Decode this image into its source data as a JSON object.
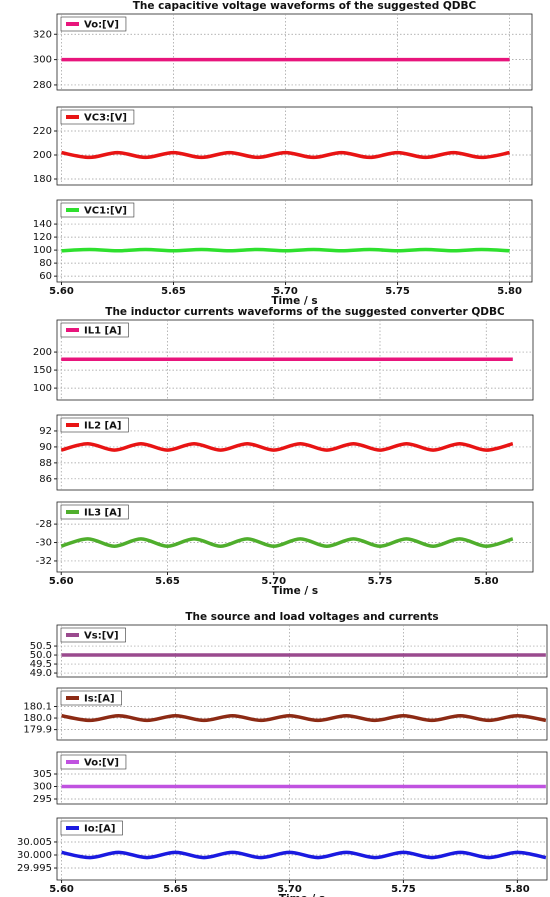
{
  "chart_data": [
    {
      "type": "line",
      "title": "The capacitive voltage waveforms of the suggested QDBC",
      "x": [
        5.6,
        5.6125,
        5.625,
        5.6375,
        5.65,
        5.6625,
        5.675,
        5.6875,
        5.7,
        5.7125,
        5.725,
        5.7375,
        5.75,
        5.7625,
        5.775,
        5.7875,
        5.8
      ],
      "series": [
        {
          "name": "Vo:[V]",
          "color": "#e8157c",
          "values": [
            300,
            300,
            300,
            300,
            300,
            300,
            300,
            300,
            300,
            300,
            300,
            300,
            300,
            300,
            300,
            300,
            300
          ]
        }
      ],
      "xlim": [
        5.598,
        5.81
      ],
      "xticks": [
        5.6,
        5.65,
        5.7,
        5.75,
        5.8
      ],
      "ylim": [
        276,
        336
      ],
      "yticks": [
        280,
        300,
        320
      ],
      "grid": true,
      "legend": "upper left"
    },
    {
      "type": "line",
      "x": [
        5.6,
        5.6125,
        5.625,
        5.6375,
        5.65,
        5.6625,
        5.675,
        5.6875,
        5.7,
        5.7125,
        5.725,
        5.7375,
        5.75,
        5.7625,
        5.775,
        5.7875,
        5.8
      ],
      "series": [
        {
          "name": "VC3:[V]",
          "color": "#e81414",
          "values": [
            202,
            198,
            202,
            198,
            202,
            198,
            202,
            198,
            202,
            198,
            202,
            198,
            202,
            198,
            202,
            198,
            202
          ]
        }
      ],
      "xlim": [
        5.598,
        5.81
      ],
      "xticks": [
        5.6,
        5.65,
        5.7,
        5.75,
        5.8
      ],
      "ylim": [
        175,
        240
      ],
      "yticks": [
        180,
        200,
        220
      ],
      "grid": true,
      "legend": "upper left"
    },
    {
      "type": "line",
      "x": [
        5.6,
        5.6125,
        5.625,
        5.6375,
        5.65,
        5.6625,
        5.675,
        5.6875,
        5.7,
        5.7125,
        5.725,
        5.7375,
        5.75,
        5.7625,
        5.775,
        5.7875,
        5.8
      ],
      "series": [
        {
          "name": "VC1:[V]",
          "color": "#2ee02e",
          "values": [
            99,
            101,
            99,
            101,
            99,
            101,
            99,
            101,
            99,
            101,
            99,
            101,
            99,
            101,
            99,
            101,
            99
          ]
        }
      ],
      "xlim": [
        5.598,
        5.81
      ],
      "xticks": [
        {
          "value": 5.6,
          "label": "5.60"
        },
        {
          "value": 5.65,
          "label": "5.65"
        },
        {
          "value": 5.7,
          "label": "5.70"
        },
        {
          "value": 5.75,
          "label": "5.75"
        },
        {
          "value": 5.8,
          "label": "5.80"
        }
      ],
      "ylim": [
        51,
        177
      ],
      "yticks": [
        60,
        80,
        100,
        120,
        140
      ],
      "grid": true,
      "legend": "upper left",
      "xlabel": "Time / s"
    },
    {
      "type": "line",
      "title": "The inductor currents waveforms of the suggested converter QDBC",
      "x": [
        5.6,
        5.6125,
        5.625,
        5.6375,
        5.65,
        5.6625,
        5.675,
        5.6875,
        5.7,
        5.7125,
        5.725,
        5.7375,
        5.75,
        5.7625,
        5.775,
        5.7875,
        5.8,
        5.8125
      ],
      "series": [
        {
          "name": "IL1 [A]",
          "color": "#e8157c",
          "values": [
            180,
            180,
            180,
            180,
            180,
            180,
            180,
            180,
            180,
            180,
            180,
            180,
            180,
            180,
            180,
            180,
            180,
            180
          ]
        }
      ],
      "xlim": [
        5.598,
        5.822
      ],
      "xticks": [
        5.6,
        5.65,
        5.7,
        5.75,
        5.8
      ],
      "ylim": [
        67,
        289
      ],
      "yticks": [
        100,
        150,
        200
      ],
      "grid": true,
      "legend": "upper left"
    },
    {
      "type": "line",
      "x": [
        5.6,
        5.6125,
        5.625,
        5.6375,
        5.65,
        5.6625,
        5.675,
        5.6875,
        5.7,
        5.7125,
        5.725,
        5.7375,
        5.75,
        5.7625,
        5.775,
        5.7875,
        5.8,
        5.8125
      ],
      "series": [
        {
          "name": "IL2 [A]",
          "color": "#e81414",
          "values": [
            89.6,
            90.4,
            89.6,
            90.4,
            89.6,
            90.4,
            89.6,
            90.4,
            89.6,
            90.4,
            89.6,
            90.4,
            89.6,
            90.4,
            89.6,
            90.4,
            89.6,
            90.4
          ]
        }
      ],
      "xlim": [
        5.598,
        5.822
      ],
      "xticks": [
        5.6,
        5.65,
        5.7,
        5.75,
        5.8
      ],
      "ylim": [
        84.6,
        94
      ],
      "yticks": [
        86,
        88,
        90,
        92
      ],
      "grid": true,
      "legend": "upper left"
    },
    {
      "type": "line",
      "x": [
        5.6,
        5.6125,
        5.625,
        5.6375,
        5.65,
        5.6625,
        5.675,
        5.6875,
        5.7,
        5.7125,
        5.725,
        5.7375,
        5.75,
        5.7625,
        5.775,
        5.7875,
        5.8,
        5.8125
      ],
      "series": [
        {
          "name": "IL3 [A]",
          "color": "#4fae2c",
          "values": [
            -30.4,
            -29.6,
            -30.4,
            -29.6,
            -30.4,
            -29.6,
            -30.4,
            -29.6,
            -30.4,
            -29.6,
            -30.4,
            -29.6,
            -30.4,
            -29.6,
            -30.4,
            -29.6,
            -30.4,
            -29.6
          ]
        }
      ],
      "xlim": [
        5.598,
        5.822
      ],
      "xticks": [
        {
          "value": 5.6,
          "label": "5.60"
        },
        {
          "value": 5.65,
          "label": "5.65"
        },
        {
          "value": 5.7,
          "label": "5.70"
        },
        {
          "value": 5.75,
          "label": "5.75"
        },
        {
          "value": 5.8,
          "label": "5.80"
        }
      ],
      "ylim": [
        -33.2,
        -25.6
      ],
      "yticks": [
        -32,
        -30,
        -28
      ],
      "grid": true,
      "legend": "upper left",
      "xlabel": "Time / s"
    },
    {
      "type": "line",
      "title": "The source and load voltages and currents",
      "x": [
        5.6,
        5.6125,
        5.625,
        5.6375,
        5.65,
        5.6625,
        5.675,
        5.6875,
        5.7,
        5.7125,
        5.725,
        5.7375,
        5.75,
        5.7625,
        5.775,
        5.7875,
        5.8,
        5.8125
      ],
      "series": [
        {
          "name": "Vs:[V]",
          "color": "#9a4a8e",
          "values": [
            50,
            50,
            50,
            50,
            50,
            50,
            50,
            50,
            50,
            50,
            50,
            50,
            50,
            50,
            50,
            50,
            50,
            50
          ]
        }
      ],
      "xlim": [
        5.598,
        5.813
      ],
      "xticks": [
        5.6,
        5.65,
        5.7,
        5.75,
        5.8
      ],
      "ylim": [
        48.78,
        51.67
      ],
      "yticks": [
        {
          "value": 49,
          "label": "49.0"
        },
        49.5,
        {
          "value": 50,
          "label": "50.0"
        },
        50.5
      ],
      "grid": true,
      "legend": "upper left"
    },
    {
      "type": "line",
      "x": [
        5.6,
        5.6125,
        5.625,
        5.6375,
        5.65,
        5.6625,
        5.675,
        5.6875,
        5.7,
        5.7125,
        5.725,
        5.7375,
        5.75,
        5.7625,
        5.775,
        5.7875,
        5.8,
        5.8125
      ],
      "series": [
        {
          "name": "Is:[A]",
          "color": "#8c2a14",
          "values": [
            180.02,
            179.98,
            180.02,
            179.98,
            180.02,
            179.98,
            180.02,
            179.98,
            180.02,
            179.98,
            180.02,
            179.98,
            180.02,
            179.98,
            180.02,
            179.98,
            180.02,
            179.98
          ]
        }
      ],
      "xlim": [
        5.598,
        5.813
      ],
      "xticks": [
        5.6,
        5.65,
        5.7,
        5.75,
        5.8
      ],
      "ylim": [
        179.81,
        180.26
      ],
      "yticks": [
        179.9,
        {
          "value": 180,
          "label": "180.0"
        },
        180.1
      ],
      "grid": true,
      "legend": "upper left"
    },
    {
      "type": "line",
      "x": [
        5.6,
        5.6125,
        5.625,
        5.6375,
        5.65,
        5.6625,
        5.675,
        5.6875,
        5.7,
        5.7125,
        5.725,
        5.7375,
        5.75,
        5.7625,
        5.775,
        5.7875,
        5.8,
        5.8125
      ],
      "series": [
        {
          "name": "Vo:[V]",
          "color": "#c052e0",
          "values": [
            300,
            300,
            300,
            300,
            300,
            300,
            300,
            300,
            300,
            300,
            300,
            300,
            300,
            300,
            300,
            300,
            300,
            300
          ]
        }
      ],
      "xlim": [
        5.598,
        5.813
      ],
      "xticks": [
        5.6,
        5.65,
        5.7,
        5.75,
        5.8
      ],
      "ylim": [
        293,
        313.8
      ],
      "yticks": [
        295,
        300,
        305
      ],
      "grid": true,
      "legend": "upper left"
    },
    {
      "type": "line",
      "x": [
        5.6,
        5.6125,
        5.625,
        5.6375,
        5.65,
        5.6625,
        5.675,
        5.6875,
        5.7,
        5.7125,
        5.725,
        5.7375,
        5.75,
        5.7625,
        5.775,
        5.7875,
        5.8,
        5.8125
      ],
      "series": [
        {
          "name": "Io:[A]",
          "color": "#1a1ae0",
          "values": [
            30.001,
            29.999,
            30.001,
            29.999,
            30.001,
            29.999,
            30.001,
            29.999,
            30.001,
            29.999,
            30.001,
            29.999,
            30.001,
            29.999,
            30.001,
            29.999,
            30.001,
            29.999
          ]
        }
      ],
      "xlim": [
        5.598,
        5.813
      ],
      "xticks": [
        {
          "value": 5.6,
          "label": "5.60"
        },
        {
          "value": 5.65,
          "label": "5.65"
        },
        {
          "value": 5.7,
          "label": "5.70"
        },
        {
          "value": 5.75,
          "label": "5.75"
        },
        {
          "value": 5.8,
          "label": "5.80"
        }
      ],
      "ylim": [
        29.9904,
        30.0142
      ],
      "yticks": [
        29.995,
        {
          "value": 30,
          "label": "30.000"
        },
        30.005
      ],
      "grid": true,
      "legend": "upper left",
      "xlabel": "Time / s"
    }
  ]
}
